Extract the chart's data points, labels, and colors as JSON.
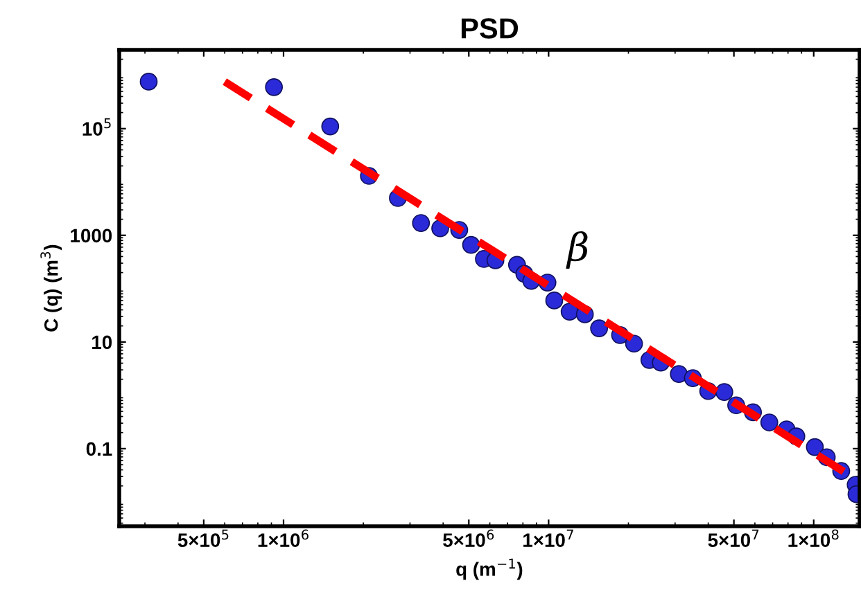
{
  "chart_data": {
    "type": "scatter",
    "title": "PSD",
    "xlabel": "q (m$^{−1}$)",
    "ylabel": "C (q) (m$^{3}$)",
    "log": "xy",
    "grid": false,
    "legend": false,
    "marker": "circle",
    "xlim": [
      240000,
      149000000
    ],
    "ylim": [
      0.0035,
      3000000
    ],
    "xticks": [
      {
        "value": 500000,
        "label": "5×10$^{5}$"
      },
      {
        "value": 1000000,
        "label": "1×10$^{6}$"
      },
      {
        "value": 5000000,
        "label": "5×10$^{6}$"
      },
      {
        "value": 10000000,
        "label": "1×10$^{7}$"
      },
      {
        "value": 50000000,
        "label": "5×10$^{7}$"
      },
      {
        "value": 100000000,
        "label": "1×10$^{8}$"
      }
    ],
    "yticks": [
      0.1,
      10,
      1000,
      {
        "value": 100000,
        "label": "10$^{5}$"
      }
    ],
    "annotations": [
      "β"
    ],
    "series": [
      {
        "color": "#2a2ad8",
        "x": [
          310000,
          920000,
          1500000,
          2100000,
          2700000,
          3300000,
          3900000,
          4600000,
          5100000,
          5700000,
          6300000,
          7600000,
          8100000,
          8600000,
          9900000,
          10500000,
          12000000,
          13700000,
          15500000,
          18600000,
          21000000,
          24000000,
          26500000,
          31000000,
          35000000,
          40000000,
          46000000,
          51000000,
          59000000,
          68000000,
          79000000,
          86000000,
          101000000,
          112000000,
          127000000,
          144000000,
          145000000
        ],
        "values": [
          760000,
          600000,
          110000,
          13000,
          5000,
          1700,
          1350,
          1260,
          660,
          360,
          340,
          280,
          190,
          140,
          130,
          60,
          37,
          33,
          18,
          13.5,
          9.3,
          4.6,
          4.1,
          2.5,
          2.1,
          1.2,
          1.15,
          0.65,
          0.48,
          0.31,
          0.23,
          0.17,
          0.107,
          0.069,
          0.038,
          0.021,
          0.014
        ]
      },
      {
        "type": "line",
        "color": "#ff0000",
        "line_style": "dashed",
        "marker": "none",
        "x": [
          600000,
          149000000
        ],
        "values": [
          760000,
          0.024
        ]
      }
    ]
  }
}
